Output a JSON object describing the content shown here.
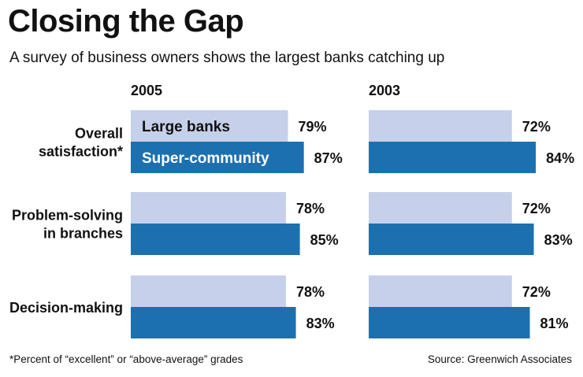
{
  "title": "Closing the Gap",
  "subtitle": "A survey of business owners shows the largest banks catching up",
  "footnote": "*Percent of “excellent” or “above-average” grades",
  "source": "Source: Greenwich Associates",
  "chart_data": {
    "type": "bar",
    "orientation": "horizontal",
    "panels": [
      {
        "label": "2005",
        "categories": [
          "Overall satisfaction*",
          "Problem-solving in branches",
          "Decision-making"
        ],
        "series": [
          {
            "name": "Large banks",
            "values": [
              79,
              78,
              78
            ]
          },
          {
            "name": "Super-community",
            "values": [
              87,
              85,
              83
            ]
          }
        ]
      },
      {
        "label": "2003",
        "categories": [
          "Overall satisfaction*",
          "Problem-solving in branches",
          "Decision-making"
        ],
        "series": [
          {
            "name": "Large banks",
            "values": [
              72,
              72,
              72
            ]
          },
          {
            "name": "Super-community",
            "values": [
              84,
              83,
              81
            ]
          }
        ]
      }
    ],
    "category_labels": [
      [
        "Overall",
        "satisfaction*"
      ],
      [
        "Problem-solving",
        "in branches"
      ],
      [
        "Decision-making"
      ]
    ],
    "legend_in_bars": [
      "Large banks",
      "Super-community"
    ],
    "value_suffix": "%",
    "colors": {
      "large_banks": "#c7d0ea",
      "super_community": "#1d70b0"
    }
  }
}
